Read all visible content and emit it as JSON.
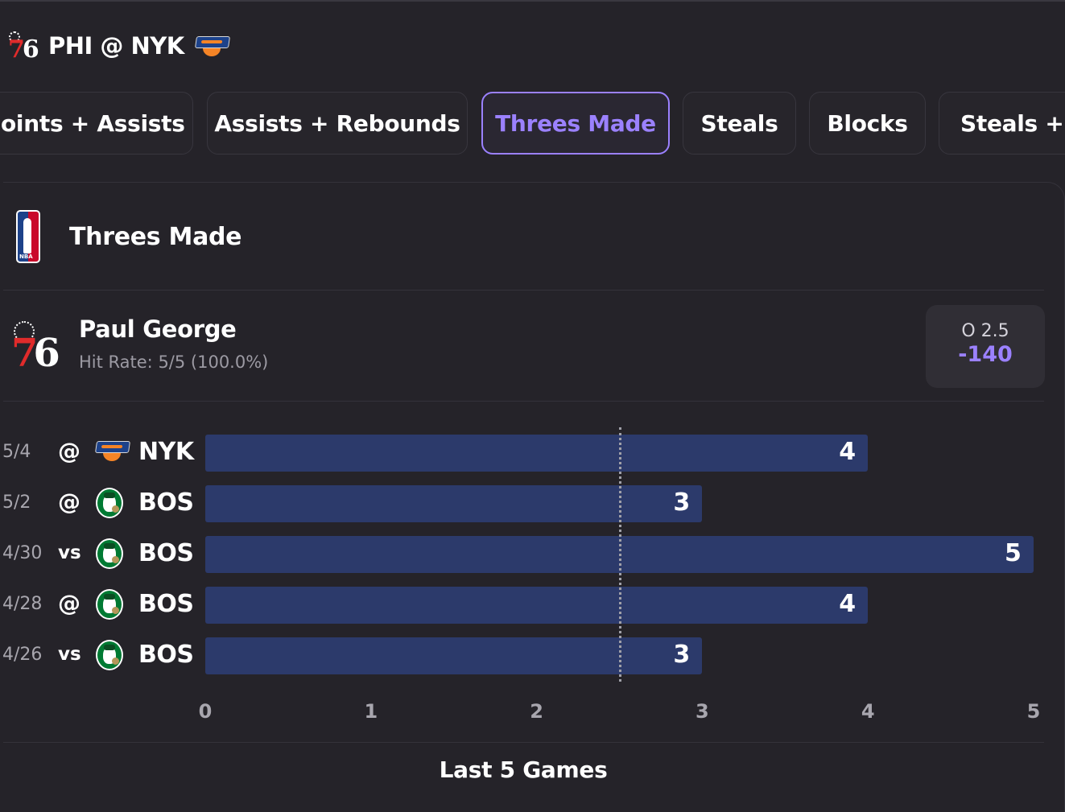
{
  "header": {
    "matchup": "PHI @ NYK",
    "home_team": "76ers",
    "away_team": "Knicks"
  },
  "tabs": [
    {
      "label": "Points + Assists",
      "visible_text": "oints + Assists",
      "active": false
    },
    {
      "label": "Assists + Rebounds",
      "visible_text": "Assists + Rebounds",
      "active": false
    },
    {
      "label": "Threes Made",
      "visible_text": "Threes Made",
      "active": true
    },
    {
      "label": "Steals",
      "visible_text": "Steals",
      "active": false
    },
    {
      "label": "Blocks",
      "visible_text": "Blocks",
      "active": false
    },
    {
      "label": "Steals + B",
      "visible_text": "Steals + B",
      "active": false
    }
  ],
  "card": {
    "title": "Threes Made",
    "league_icon": "nba-logo-icon"
  },
  "player": {
    "name": "Paul George",
    "hit_rate": "Hit Rate: 5/5 (100.0%)",
    "odds_line": "O 2.5",
    "odds_price": "-140"
  },
  "colors": {
    "accent": "#9b81ff",
    "bar": "#2c3a6b",
    "background": "#252329"
  },
  "chart_data": {
    "type": "bar",
    "orientation": "horizontal",
    "rows": [
      {
        "date": "5/4",
        "location": "@",
        "opponent": "NYK",
        "opponent_icon": "knicks-logo-icon",
        "value": 4
      },
      {
        "date": "5/2",
        "location": "@",
        "opponent": "BOS",
        "opponent_icon": "celtics-logo-icon",
        "value": 3
      },
      {
        "date": "4/30",
        "location": "vs",
        "opponent": "BOS",
        "opponent_icon": "celtics-logo-icon",
        "value": 5
      },
      {
        "date": "4/28",
        "location": "@",
        "opponent": "BOS",
        "opponent_icon": "celtics-logo-icon",
        "value": 4
      },
      {
        "date": "4/26",
        "location": "vs",
        "opponent": "BOS",
        "opponent_icon": "celtics-logo-icon",
        "value": 3
      }
    ],
    "threshold": 2.5,
    "xlim": [
      0,
      5
    ],
    "xticks": [
      "0",
      "1",
      "2",
      "3",
      "4",
      "5"
    ],
    "footer": "Last 5 Games"
  }
}
